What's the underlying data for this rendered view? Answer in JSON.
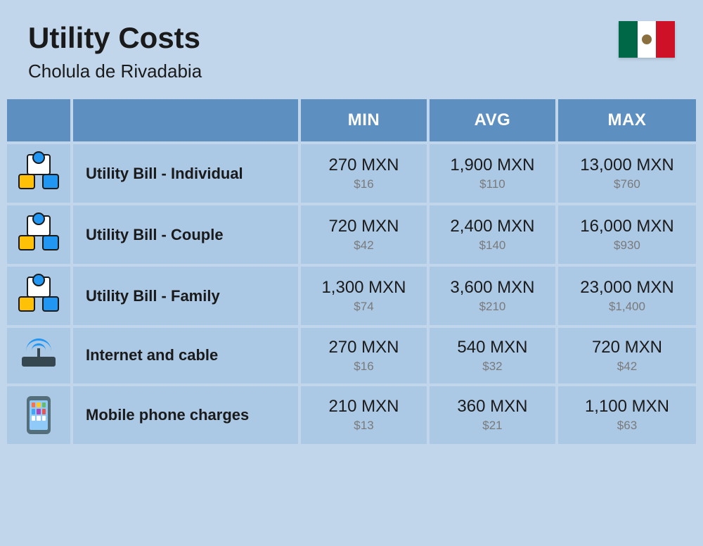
{
  "header": {
    "title": "Utility Costs",
    "subtitle": "Cholula de Rivadabia",
    "flag_colors": {
      "left": "#006847",
      "center": "#ffffff",
      "right": "#ce1126"
    }
  },
  "table": {
    "header_bg": "#5d8fc0",
    "header_text_color": "#ffffff",
    "row_bg": "#abc8e5",
    "columns": [
      "MIN",
      "AVG",
      "MAX"
    ],
    "rows": [
      {
        "icon": "utility-icon",
        "label": "Utility Bill - Individual",
        "min": {
          "mxn": "270 MXN",
          "usd": "$16"
        },
        "avg": {
          "mxn": "1,900 MXN",
          "usd": "$110"
        },
        "max": {
          "mxn": "13,000 MXN",
          "usd": "$760"
        }
      },
      {
        "icon": "utility-icon",
        "label": "Utility Bill - Couple",
        "min": {
          "mxn": "720 MXN",
          "usd": "$42"
        },
        "avg": {
          "mxn": "2,400 MXN",
          "usd": "$140"
        },
        "max": {
          "mxn": "16,000 MXN",
          "usd": "$930"
        }
      },
      {
        "icon": "utility-icon",
        "label": "Utility Bill - Family",
        "min": {
          "mxn": "1,300 MXN",
          "usd": "$74"
        },
        "avg": {
          "mxn": "3,600 MXN",
          "usd": "$210"
        },
        "max": {
          "mxn": "23,000 MXN",
          "usd": "$1,400"
        }
      },
      {
        "icon": "router-icon",
        "label": "Internet and cable",
        "min": {
          "mxn": "270 MXN",
          "usd": "$16"
        },
        "avg": {
          "mxn": "540 MXN",
          "usd": "$32"
        },
        "max": {
          "mxn": "720 MXN",
          "usd": "$42"
        }
      },
      {
        "icon": "phone-icon",
        "label": "Mobile phone charges",
        "min": {
          "mxn": "210 MXN",
          "usd": "$13"
        },
        "avg": {
          "mxn": "360 MXN",
          "usd": "$21"
        },
        "max": {
          "mxn": "1,100 MXN",
          "usd": "$63"
        }
      }
    ]
  },
  "styling": {
    "page_bg": "#c1d6eb",
    "title_fontsize": 42,
    "subtitle_fontsize": 26,
    "header_fontsize": 24,
    "label_fontsize": 22,
    "value_main_fontsize": 24,
    "value_sub_fontsize": 17,
    "value_sub_color": "#7a7a7a"
  }
}
